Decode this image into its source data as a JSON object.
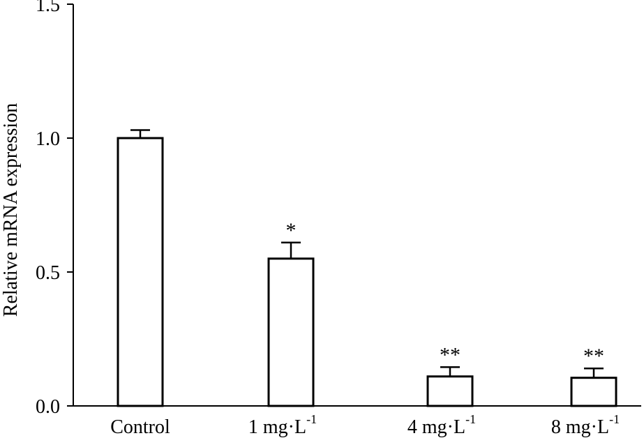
{
  "chart_data": {
    "type": "bar",
    "title": "",
    "xlabel": "",
    "ylabel": "Relative mRNA expression",
    "ylim": [
      0,
      1.5
    ],
    "yticks": [
      "0.0",
      "0.5",
      "1.0",
      "1.5"
    ],
    "grid": false,
    "categories": [
      {
        "main": "Control",
        "sup": ""
      },
      {
        "main": "1 mg·L",
        "sup": "-1"
      },
      {
        "main": "4 mg·L",
        "sup": "-1"
      },
      {
        "main": "8 mg·L",
        "sup": "-1"
      }
    ],
    "values": [
      1.0,
      0.55,
      0.11,
      0.105
    ],
    "errors": [
      0.03,
      0.06,
      0.035,
      0.035
    ],
    "significance": [
      "",
      "*",
      "**",
      "**"
    ]
  }
}
